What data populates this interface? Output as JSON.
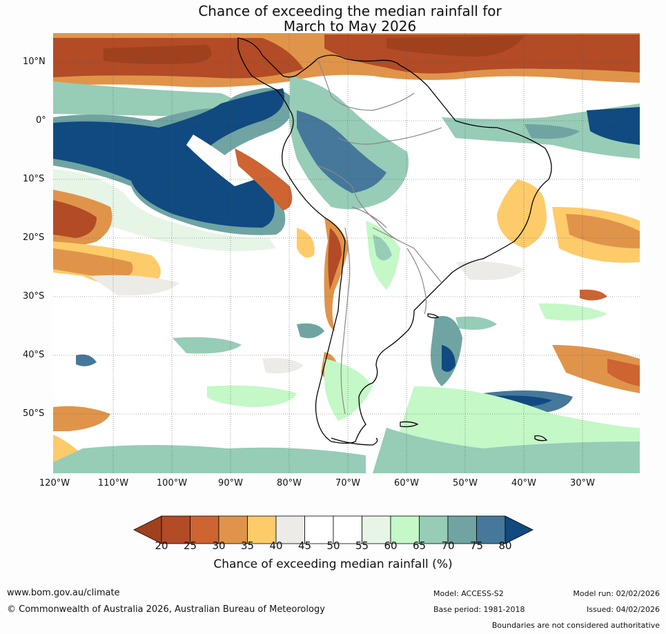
{
  "title_line1": "Chance of exceeding the median rainfall for",
  "title_line2": "March to May 2026",
  "lat_labels": [
    "10°N",
    "0°",
    "10°S",
    "20°S",
    "30°S",
    "40°S",
    "50°S"
  ],
  "lon_labels": [
    "120°W",
    "110°W",
    "100°W",
    "90°W",
    "80°W",
    "70°W",
    "60°W",
    "50°W",
    "40°W",
    "30°W"
  ],
  "colorbar": {
    "ticks": [
      "20",
      "25",
      "30",
      "35",
      "40",
      "45",
      "50",
      "55",
      "60",
      "65",
      "70",
      "75",
      "80"
    ],
    "colors": [
      "#a0411e",
      "#b24b26",
      "#cd6432",
      "#e0944a",
      "#fecb6a",
      "#ecebe7",
      "#ffffff",
      "#ffffff",
      "#e7f5e7",
      "#c4f8c7",
      "#97ccb7",
      "#6fa4a2",
      "#45789a",
      "#104a80"
    ],
    "label": "Chance of exceeding median rainfall (%)"
  },
  "footer": {
    "url": "www.bom.gov.au/climate",
    "copyright": "© Commonwealth of Australia 2026, Australian Bureau of Meteorology",
    "model": "Model: ACCESS-S2",
    "base_period": "Base period: 1981-2018",
    "model_run": "Model run: 02/02/2026",
    "issued": "Issued: 04/02/2026",
    "boundaries_note": "Boundaries are not considered authoritative"
  }
}
